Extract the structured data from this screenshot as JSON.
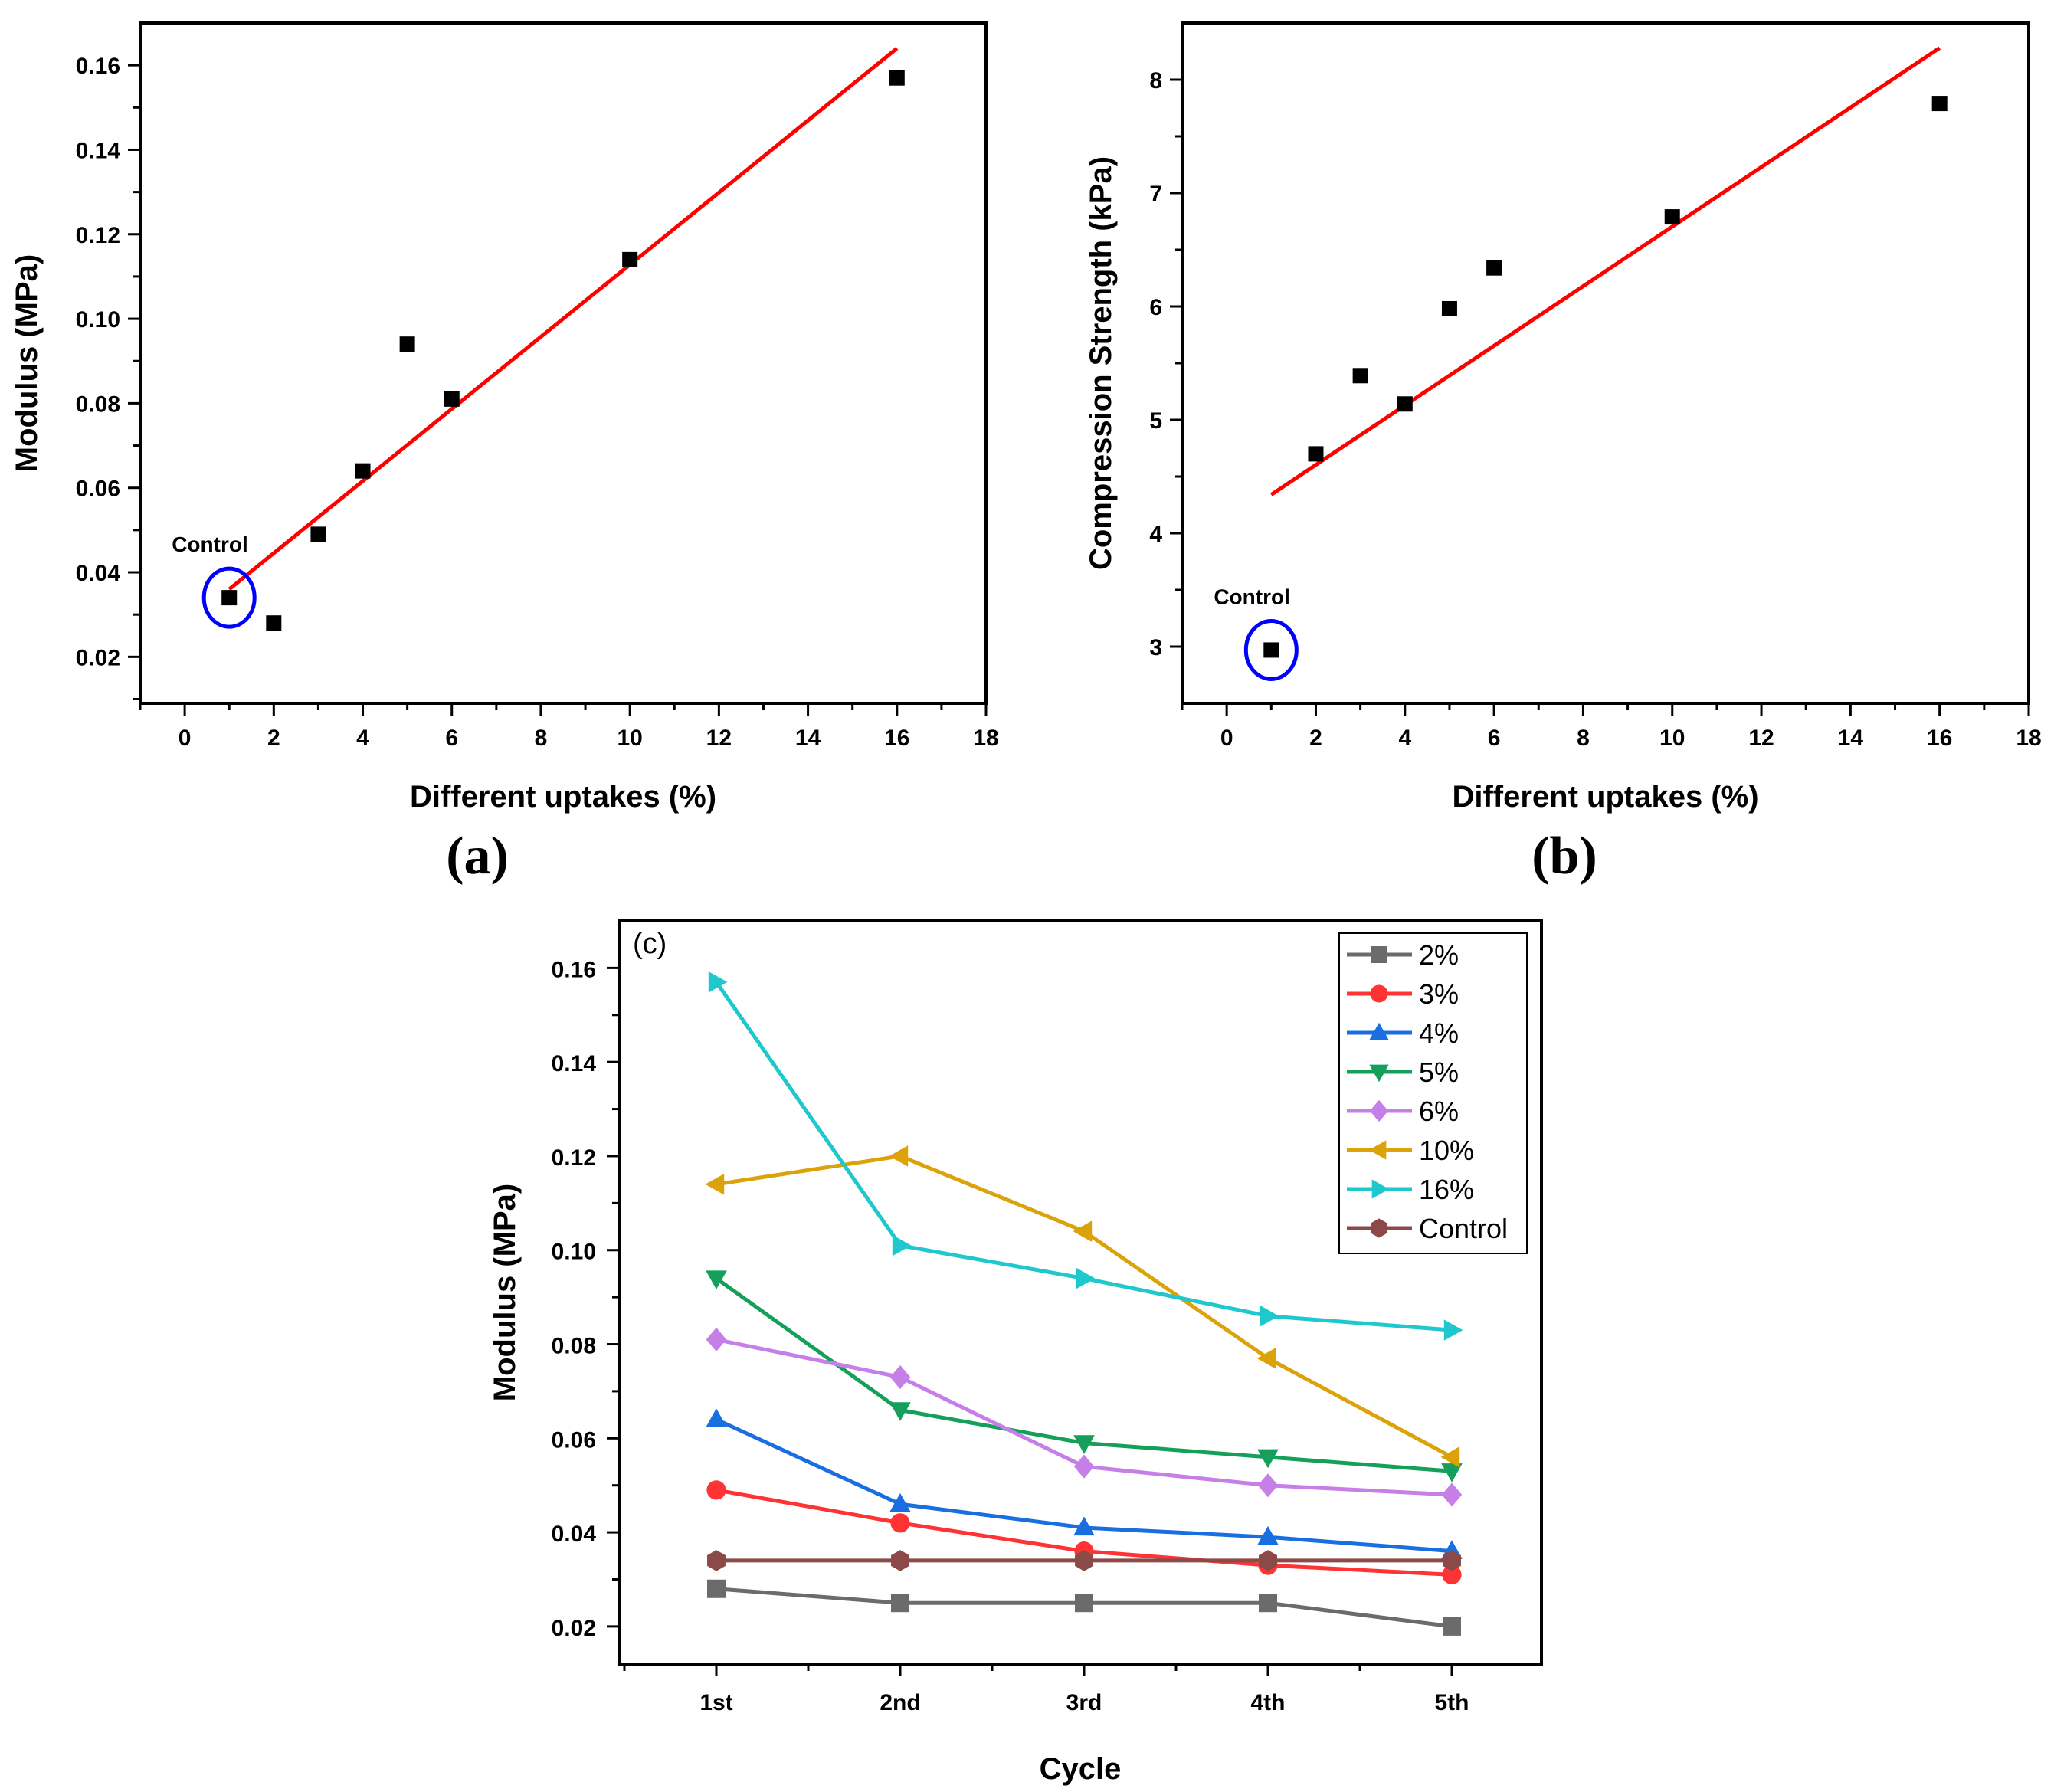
{
  "chart_data": [
    {
      "id": "a",
      "type": "scatter",
      "panel_label": "(a)",
      "xlabel": "Different uptakes (%)",
      "ylabel": "Modulus (MPa)",
      "xlim": [
        -1,
        18
      ],
      "ylim": [
        0.009,
        0.17
      ],
      "xticks": [
        0,
        2,
        4,
        6,
        8,
        10,
        12,
        14,
        16,
        18
      ],
      "yticks": [
        0.02,
        0.04,
        0.06,
        0.08,
        0.1,
        0.12,
        0.14,
        0.16
      ],
      "ytick_labels": [
        "0.02",
        "0.04",
        "0.06",
        "0.08",
        "0.10",
        "0.12",
        "0.14",
        "0.16"
      ],
      "points": {
        "x": [
          1,
          2,
          3,
          4,
          5,
          6,
          10,
          16
        ],
        "y": [
          0.034,
          0.028,
          0.049,
          0.064,
          0.094,
          0.081,
          0.114,
          0.157
        ]
      },
      "fit_line": {
        "x": [
          1,
          16
        ],
        "y": [
          0.036,
          0.164
        ],
        "color": "#ff0000"
      },
      "annotation": {
        "text": "Control",
        "x": 1,
        "y": 0.034,
        "circle_color": "#0000ff"
      }
    },
    {
      "id": "b",
      "type": "scatter",
      "panel_label": "(b)",
      "xlabel": "Different uptakes (%)",
      "ylabel": "Compression Strength (kPa)",
      "xlim": [
        -1,
        18
      ],
      "ylim": [
        2.5,
        8.5
      ],
      "xticks": [
        0,
        2,
        4,
        6,
        8,
        10,
        12,
        14,
        16,
        18
      ],
      "yticks": [
        3,
        4,
        5,
        6,
        7,
        8
      ],
      "ytick_labels": [
        "3",
        "4",
        "5",
        "6",
        "7",
        "8"
      ],
      "points": {
        "x": [
          1,
          2,
          3,
          4,
          5,
          6,
          10,
          16
        ],
        "y": [
          2.97,
          4.7,
          5.39,
          5.14,
          5.98,
          6.34,
          6.79,
          7.79
        ]
      },
      "fit_line": {
        "x": [
          1,
          16
        ],
        "y": [
          4.34,
          8.28
        ],
        "color": "#ff0000"
      },
      "annotation": {
        "text": "Control",
        "x": 1,
        "y": 2.97,
        "circle_color": "#0000ff"
      }
    },
    {
      "id": "c",
      "type": "line",
      "panel_tag": "(c)",
      "xlabel": "Cycle",
      "ylabel": "Modulus (MPa)",
      "categories": [
        "1st",
        "2nd",
        "3rd",
        "4th",
        "5th"
      ],
      "ylim": [
        0.012,
        0.17
      ],
      "yticks": [
        0.02,
        0.04,
        0.06,
        0.08,
        0.1,
        0.12,
        0.14,
        0.16
      ],
      "ytick_labels": [
        "0.02",
        "0.04",
        "0.06",
        "0.08",
        "0.10",
        "0.12",
        "0.14",
        "0.16"
      ],
      "legend_position": "top-right",
      "series": [
        {
          "name": "2%",
          "color": "#6b6b6b",
          "marker": "square",
          "values": [
            0.028,
            0.025,
            0.025,
            0.025,
            0.02
          ]
        },
        {
          "name": "3%",
          "color": "#ff3333",
          "marker": "circle",
          "values": [
            0.049,
            0.042,
            0.036,
            0.033,
            0.031
          ]
        },
        {
          "name": "4%",
          "color": "#1a6fe0",
          "marker": "triangle-up",
          "values": [
            0.064,
            0.046,
            0.041,
            0.039,
            0.036
          ]
        },
        {
          "name": "5%",
          "color": "#14a05a",
          "marker": "triangle-down",
          "values": [
            0.094,
            0.066,
            0.059,
            0.056,
            0.053
          ]
        },
        {
          "name": "6%",
          "color": "#c77fe8",
          "marker": "diamond",
          "values": [
            0.081,
            0.073,
            0.054,
            0.05,
            0.048
          ]
        },
        {
          "name": "10%",
          "color": "#dba20a",
          "marker": "triangle-left",
          "values": [
            0.114,
            0.12,
            0.104,
            0.077,
            0.056
          ]
        },
        {
          "name": "16%",
          "color": "#1ec8cc",
          "marker": "triangle-right",
          "values": [
            0.157,
            0.101,
            0.094,
            0.086,
            0.083
          ]
        },
        {
          "name": "Control",
          "color": "#8b4a48",
          "marker": "hexagon",
          "values": [
            0.034,
            0.034,
            0.034,
            0.034,
            0.034
          ]
        }
      ]
    }
  ]
}
